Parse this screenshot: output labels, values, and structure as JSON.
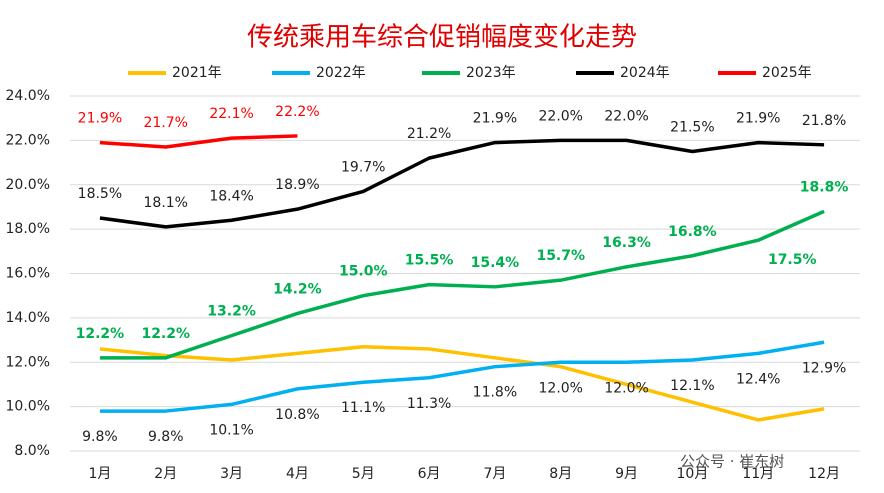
{
  "chart_data": {
    "type": "line",
    "title": "传统乘用车综合促销幅度变化走势",
    "categories": [
      "1月",
      "2月",
      "3月",
      "4月",
      "5月",
      "6月",
      "7月",
      "8月",
      "9月",
      "10月",
      "11月",
      "12月"
    ],
    "series": [
      {
        "name": "2021年",
        "color": "#FFC000",
        "values": [
          12.6,
          12.3,
          12.1,
          12.4,
          12.7,
          12.6,
          12.2,
          11.8,
          11.0,
          10.2,
          9.4,
          9.9
        ]
      },
      {
        "name": "2022年",
        "color": "#00B0F0",
        "values": [
          9.8,
          9.8,
          10.1,
          10.8,
          11.1,
          11.3,
          11.8,
          12.0,
          12.0,
          12.1,
          12.4,
          12.9
        ],
        "value_labels": [
          "9.8%",
          "9.8%",
          "10.1%",
          "10.8%",
          "11.1%",
          "11.3%",
          "11.8%",
          "12.0%",
          "12.0%",
          "12.1%",
          "12.4%",
          "12.9%"
        ]
      },
      {
        "name": "2023年",
        "color": "#00B050",
        "values": [
          12.2,
          12.2,
          13.2,
          14.2,
          15.0,
          15.5,
          15.4,
          15.7,
          16.3,
          16.8,
          17.5,
          18.8
        ],
        "value_labels": [
          "12.2%",
          "12.2%",
          "13.2%",
          "14.2%",
          "15.0%",
          "15.5%",
          "15.4%",
          "15.7%",
          "16.3%",
          "16.8%",
          "17.5%",
          "18.8%"
        ]
      },
      {
        "name": "2024年",
        "color": "#000000",
        "values": [
          18.5,
          18.1,
          18.4,
          18.9,
          19.7,
          21.2,
          21.9,
          22.0,
          22.0,
          21.5,
          21.9,
          21.8
        ],
        "value_labels": [
          "18.5%",
          "18.1%",
          "18.4%",
          "18.9%",
          "19.7%",
          "21.2%",
          "21.9%",
          "22.0%",
          "22.0%",
          "21.5%",
          "21.9%",
          "21.8%"
        ]
      },
      {
        "name": "2025年",
        "color": "#FF0000",
        "values": [
          21.9,
          21.7,
          22.1,
          22.2,
          null,
          null,
          null,
          null,
          null,
          null,
          null,
          null
        ],
        "value_labels": [
          "21.9%",
          "21.7%",
          "22.1%",
          "22.2%",
          null,
          null,
          null,
          null,
          null,
          null,
          null,
          null
        ]
      }
    ],
    "ylim": [
      8,
      24
    ],
    "yticks": [
      {
        "value": 8,
        "label": "8.0%"
      },
      {
        "value": 10,
        "label": "10.0%"
      },
      {
        "value": 12,
        "label": "12.0%"
      },
      {
        "value": 14,
        "label": "14.0%"
      },
      {
        "value": 16,
        "label": "16.0%"
      },
      {
        "value": 18,
        "label": "18.0%"
      },
      {
        "value": 20,
        "label": "20.0%"
      },
      {
        "value": 22,
        "label": "22.0%"
      },
      {
        "value": 24,
        "label": "24.0%"
      }
    ],
    "grid": true,
    "legend": "top",
    "watermark": "公众号 · 崔东树"
  }
}
